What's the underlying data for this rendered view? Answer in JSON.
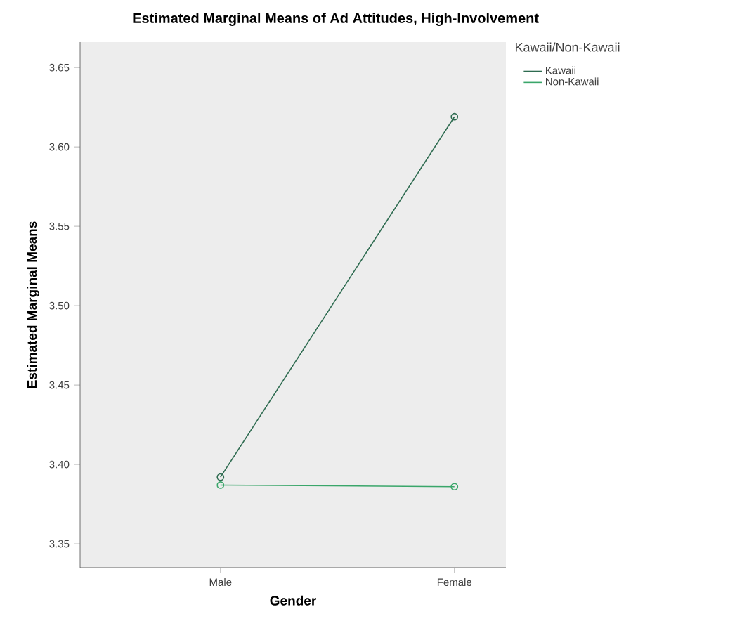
{
  "chart_data": {
    "type": "line",
    "title": "Estimated Marginal Means of Ad Attitudes, High-Involvement",
    "xlabel": "Gender",
    "ylabel": "Estimated Marginal Means",
    "legend_title": "Kawaii/Non-Kawaii",
    "categories": [
      "Male",
      "Female"
    ],
    "series": [
      {
        "name": "Kawaii",
        "color": "#2e6b50",
        "values": [
          3.392,
          3.619
        ]
      },
      {
        "name": "Non-Kawaii",
        "color": "#3aa66a",
        "values": [
          3.387,
          3.386
        ]
      }
    ],
    "ylim": [
      3.335,
      3.666
    ],
    "yticks": [
      {
        "value": 3.35,
        "label": "3.35"
      },
      {
        "value": 3.4,
        "label": "3.40"
      },
      {
        "value": 3.45,
        "label": "3.45"
      },
      {
        "value": 3.5,
        "label": "3.50"
      },
      {
        "value": 3.55,
        "label": "3.55"
      },
      {
        "value": 3.6,
        "label": "3.60"
      },
      {
        "value": 3.65,
        "label": "3.65"
      }
    ],
    "grid": false,
    "legend": "top right",
    "marker": "circle",
    "line_style": "solid"
  }
}
